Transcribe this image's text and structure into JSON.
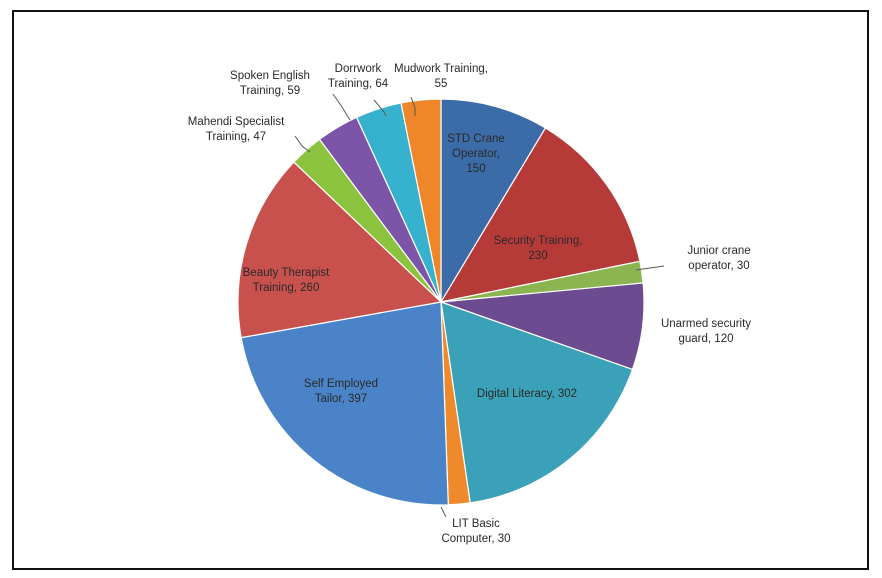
{
  "chart_data": {
    "type": "pie",
    "title": "",
    "slices": [
      {
        "label": "STD Crane Operator",
        "value_label": "150",
        "value": 150,
        "color": "#3c6ca8"
      },
      {
        "label": "Security Training",
        "value_label": "230",
        "value": 230,
        "color": "#b63b38"
      },
      {
        "label": "Junior crane operator",
        "value_label": "30",
        "value": 30,
        "color": "#8ab550"
      },
      {
        "label": "Unarmed security guard",
        "value_label": "120",
        "value": 120,
        "color": "#6c4b90"
      },
      {
        "label": "Digital Literacy",
        "value_label": "302",
        "value": 302,
        "color": "#3aa1b8"
      },
      {
        "label": "LIT Basic Computer",
        "value_label": "30",
        "value": 30,
        "color": "#ef8a2c"
      },
      {
        "label": "Self Employed Tailor",
        "value_label": "397",
        "value": 397,
        "color": "#4a83c8"
      },
      {
        "label": "Beauty Therapist Training",
        "value_label": "260",
        "value": 260,
        "color": "#c8514d"
      },
      {
        "label": "Mahendi Specialist Training",
        "value_label": "47",
        "value": 47,
        "color": "#8cc33e"
      },
      {
        "label": "Spoken English Training",
        "value_label": "59",
        "value": 59,
        "color": "#7d55a8"
      },
      {
        "label": "Dorrwork Training",
        "value_label": "64",
        "value": 64,
        "color": "#36b2cf"
      },
      {
        "label": "Mudwork Training",
        "value_label": "55",
        "value": 55,
        "color": "#f0862a"
      }
    ],
    "label_text": {
      "std_crane": [
        "STD Crane",
        "Operator,",
        "150"
      ],
      "security": [
        "Security Training,",
        "230"
      ],
      "junior_crane": [
        "Junior crane",
        "operator, 30"
      ],
      "unarmed": [
        "Unarmed security",
        "guard, 120"
      ],
      "digital": [
        "Digital Literacy, 302"
      ],
      "lit_basic": [
        "LIT Basic",
        "Computer, 30"
      ],
      "self_employed": [
        "Self Employed",
        "Tailor, 397"
      ],
      "beauty": [
        "Beauty Therapist",
        "Training, 260"
      ],
      "mahendi": [
        "Mahendi Specialist",
        "Training, 47"
      ],
      "spoken": [
        "Spoken English",
        "Training, 59"
      ],
      "dorrwork": [
        "Dorrwork",
        "Training, 64"
      ],
      "mudwork": [
        "Mudwork Training,",
        "55"
      ]
    }
  }
}
